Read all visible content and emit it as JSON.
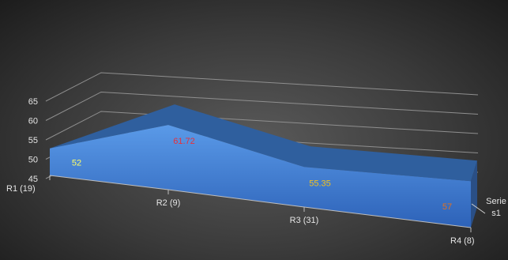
{
  "chart_data": {
    "type": "area",
    "view": "3d",
    "categories": [
      "R1 (19)",
      "R2 (9)",
      "R3 (31)",
      "R4 (8)"
    ],
    "series": [
      {
        "name": "Serie s1",
        "values": [
          52,
          61.72,
          55.35,
          57
        ],
        "color": "#4a86d6",
        "data_label_colors": [
          "#ffff66",
          "#e8303a",
          "#f0c020",
          "#e07020"
        ]
      }
    ],
    "yticks": [
      "45",
      "50",
      "55",
      "60",
      "65"
    ],
    "ylim": [
      45,
      65
    ],
    "grid": true,
    "title": "",
    "xlabel": "",
    "ylabel": ""
  }
}
